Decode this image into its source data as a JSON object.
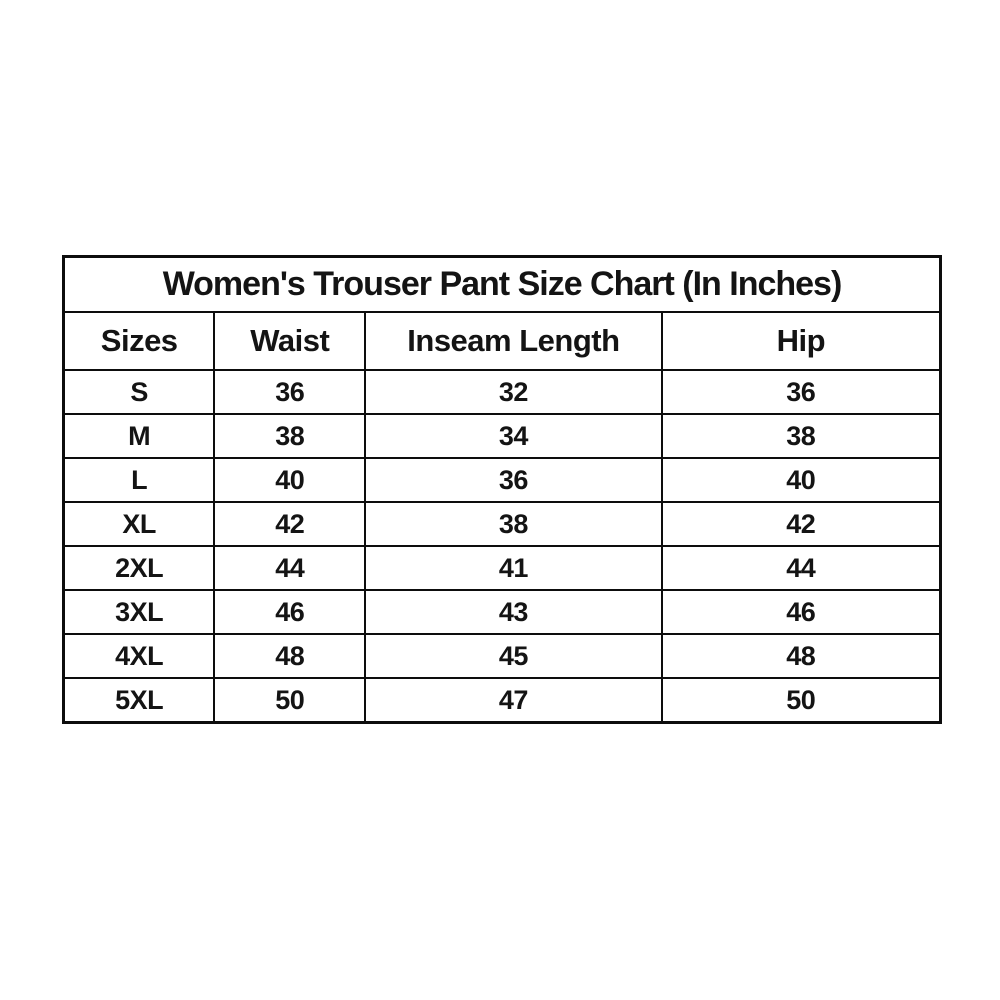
{
  "chart_data": {
    "type": "table",
    "title": "Women's Trouser Pant Size Chart (In Inches)",
    "units": "inches",
    "columns": [
      "Sizes",
      "Waist",
      "Inseam Length",
      "Hip"
    ],
    "rows": [
      [
        "S",
        "36",
        "32",
        "36"
      ],
      [
        "M",
        "38",
        "34",
        "38"
      ],
      [
        "L",
        "40",
        "36",
        "40"
      ],
      [
        "XL",
        "42",
        "38",
        "42"
      ],
      [
        "2XL",
        "44",
        "41",
        "44"
      ],
      [
        "3XL",
        "46",
        "43",
        "46"
      ],
      [
        "4XL",
        "48",
        "45",
        "48"
      ],
      [
        "5XL",
        "50",
        "47",
        "50"
      ]
    ],
    "layout": {
      "border_color": "#0d0d0d",
      "text_color": "#141414",
      "background": "#ffffff",
      "grid": true
    }
  }
}
